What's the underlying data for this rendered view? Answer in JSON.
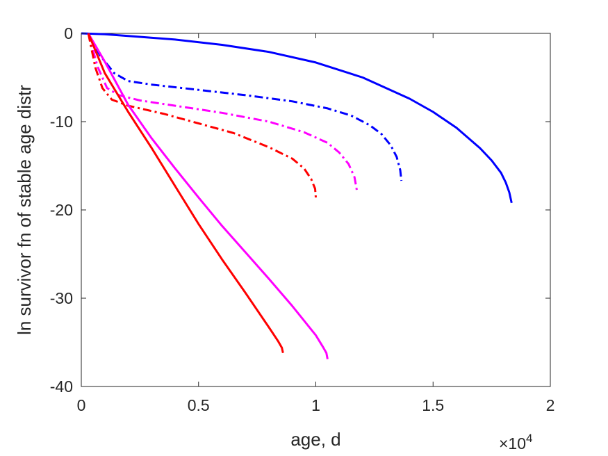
{
  "chart_data": {
    "type": "line",
    "xlabel": "age, d",
    "ylabel": "ln survivor fn of stable age distr",
    "xlim": [
      0,
      20000
    ],
    "ylim": [
      -40,
      0
    ],
    "x_tick_labels": [
      "0",
      "0.5",
      "1",
      "1.5",
      "2"
    ],
    "x_tick_values": [
      0,
      5000,
      10000,
      15000,
      20000
    ],
    "y_tick_labels": [
      "-40",
      "-30",
      "-20",
      "-10",
      "0"
    ],
    "y_tick_values": [
      -40,
      -30,
      -20,
      -10,
      0
    ],
    "x_exponent": {
      "base": "×10",
      "power": "4"
    },
    "grid": false,
    "series": [
      {
        "color": "#0000ff",
        "style": "solid",
        "width": 3,
        "x": [
          0,
          1000,
          2000,
          4000,
          6000,
          8000,
          10000,
          12000,
          14000,
          15000,
          16000,
          17000,
          17500,
          17900,
          18100,
          18250,
          18350
        ],
        "y": [
          0,
          -0.1,
          -0.3,
          -0.7,
          -1.3,
          -2.1,
          -3.3,
          -5.0,
          -7.4,
          -8.9,
          -10.7,
          -13.0,
          -14.4,
          -15.8,
          -16.9,
          -18.0,
          -19.2
        ]
      },
      {
        "color": "#0000ff",
        "style": "dashdot",
        "width": 3,
        "x": [
          300,
          800,
          1400,
          2000,
          3000,
          5000,
          7000,
          9000,
          10500,
          11500,
          12300,
          12800,
          13200,
          13450,
          13600,
          13650
        ],
        "y": [
          0,
          -2.5,
          -4.5,
          -5.4,
          -5.8,
          -6.4,
          -7.0,
          -7.7,
          -8.5,
          -9.3,
          -10.4,
          -11.4,
          -12.7,
          -14.0,
          -15.5,
          -16.7
        ]
      },
      {
        "color": "#ff00ff",
        "style": "dashdot",
        "width": 3,
        "x": [
          300,
          700,
          1100,
          1600,
          2500,
          4000,
          6000,
          8000,
          9500,
          10500,
          11000,
          11400,
          11650,
          11750
        ],
        "y": [
          0,
          -3.8,
          -6.2,
          -7.0,
          -7.6,
          -8.2,
          -9.0,
          -10.0,
          -11.2,
          -12.4,
          -13.5,
          -14.8,
          -16.3,
          -17.8
        ]
      },
      {
        "color": "#ff0000",
        "style": "dashdot",
        "width": 3,
        "x": [
          300,
          600,
          900,
          1300,
          2000,
          3500,
          5000,
          6500,
          8000,
          9000,
          9500,
          9800,
          9970,
          10000
        ],
        "y": [
          0,
          -3.9,
          -6.2,
          -7.5,
          -8.2,
          -9.1,
          -10.2,
          -11.3,
          -12.9,
          -14.2,
          -15.3,
          -16.5,
          -17.6,
          -18.6
        ]
      },
      {
        "color": "#ff00ff",
        "style": "solid",
        "width": 3,
        "x": [
          300,
          1000,
          2000,
          3000,
          4000,
          5000,
          6000,
          7000,
          8000,
          9000,
          10000,
          10300,
          10450,
          10500
        ],
        "y": [
          0,
          -3.2,
          -8.1,
          -11.9,
          -15.3,
          -18.6,
          -21.8,
          -24.8,
          -27.8,
          -30.9,
          -34.2,
          -35.5,
          -36.2,
          -36.9
        ]
      },
      {
        "color": "#ff0000",
        "style": "solid",
        "width": 3,
        "x": [
          300,
          1000,
          2000,
          3000,
          4000,
          5000,
          6000,
          7000,
          8000,
          8400,
          8550,
          8600
        ],
        "y": [
          0,
          -4.5,
          -8.9,
          -13.0,
          -17.3,
          -21.6,
          -25.6,
          -29.4,
          -33.3,
          -34.9,
          -35.6,
          -36.2
        ]
      }
    ]
  }
}
